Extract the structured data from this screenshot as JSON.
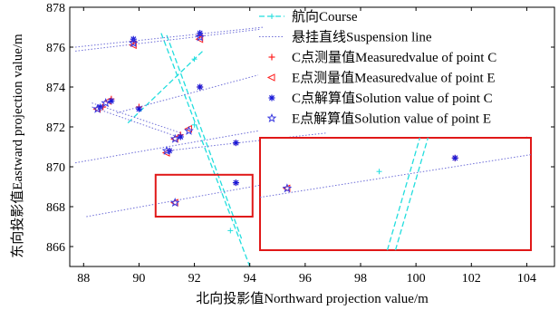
{
  "chart_data": {
    "type": "scatter",
    "xlabel": "北向投影值Northward projection value/m",
    "ylabel": "东向投影值Eastward projection value/m",
    "xlim": [
      87.5,
      105
    ],
    "ylim": [
      865,
      878
    ],
    "xticks": [
      "88",
      "90",
      "92",
      "94",
      "96",
      "98",
      "100",
      "102",
      "104"
    ],
    "yticks": [
      "866",
      "868",
      "870",
      "872",
      "874",
      "876",
      "878"
    ],
    "grid": false,
    "legend_position": "top-right",
    "legend": [
      {
        "key": "course",
        "label": "航向Course"
      },
      {
        "key": "suspension",
        "label": "悬挂直线Suspension line"
      },
      {
        "key": "measured_c",
        "label": "C点测量值Measuredvalue of point C"
      },
      {
        "key": "measured_e",
        "label": "E点测量值Measuredvalue of point E"
      },
      {
        "key": "solution_c",
        "label": "C点解算值Solution value of point C"
      },
      {
        "key": "solution_e",
        "label": "E点解算值Solution value of point E"
      }
    ],
    "colors": {
      "course": "#22dede",
      "suspension": "#6f6fd8",
      "measured_c": "#ff2020",
      "measured_e": "#ff2020",
      "solution_c": "#1a1ad8",
      "solution_e": "#3a3ae0",
      "inset_border": "#e01818"
    },
    "course_lines": [
      [
        [
          90.8,
          876.7
        ],
        [
          94.0,
          865.0
        ]
      ],
      [
        [
          91.0,
          876.6
        ],
        [
          93.7,
          866.4
        ]
      ],
      [
        [
          89.6,
          872.2
        ],
        [
          92.3,
          875.8
        ]
      ]
    ],
    "suspension_lines": [
      [
        [
          87.7,
          876.0
        ],
        [
          94.5,
          877.0
        ]
      ],
      [
        [
          87.7,
          875.8
        ],
        [
          94.4,
          876.9
        ]
      ],
      [
        [
          88.3,
          873.2
        ],
        [
          91.5,
          871.7
        ]
      ],
      [
        [
          88.3,
          873.0
        ],
        [
          91.4,
          871.5
        ]
      ],
      [
        [
          89.2,
          872.7
        ],
        [
          94.3,
          874.6
        ]
      ],
      [
        [
          87.7,
          870.2
        ],
        [
          94.3,
          871.8
        ]
      ],
      [
        [
          88.1,
          867.5
        ],
        [
          104.0,
          871.5
        ]
      ],
      [
        [
          91.0,
          870.8
        ],
        [
          96.8,
          871.7
        ]
      ]
    ],
    "points": {
      "measured_c": [
        [
          89.8,
          876.3
        ],
        [
          92.2,
          876.6
        ],
        [
          88.7,
          873.0
        ],
        [
          89.0,
          873.4
        ],
        [
          91.5,
          871.6
        ],
        [
          90.0,
          873.0
        ],
        [
          91.1,
          870.8
        ],
        [
          93.5,
          869.2
        ],
        [
          92.2,
          874.0
        ],
        [
          93.5,
          871.2
        ]
      ],
      "measured_e": [
        [
          89.8,
          876.1
        ],
        [
          92.2,
          876.4
        ],
        [
          88.5,
          872.9
        ],
        [
          88.9,
          873.3
        ],
        [
          91.3,
          871.4
        ],
        [
          91.8,
          871.9
        ],
        [
          91.0,
          870.7
        ],
        [
          91.3,
          868.2
        ]
      ],
      "solution_c": [
        [
          89.8,
          876.4
        ],
        [
          92.2,
          876.7
        ],
        [
          88.6,
          873.0
        ],
        [
          89.0,
          873.3
        ],
        [
          91.5,
          871.5
        ],
        [
          90.0,
          872.9
        ],
        [
          91.1,
          870.8
        ],
        [
          93.5,
          869.2
        ],
        [
          92.2,
          874.0
        ],
        [
          93.5,
          871.2
        ]
      ],
      "solution_e": [
        [
          89.8,
          876.2
        ],
        [
          92.2,
          876.5
        ],
        [
          88.5,
          872.9
        ],
        [
          88.8,
          873.2
        ],
        [
          91.3,
          871.4
        ],
        [
          91.8,
          871.8
        ],
        [
          91.0,
          870.8
        ],
        [
          91.3,
          868.2
        ]
      ]
    },
    "zoom_source": {
      "x": [
        90.6,
        94.1
      ],
      "y": [
        867.5,
        869.6
      ]
    },
    "inset": {
      "description_in_data_units": "magnified view of the boxed region",
      "suspension": [
        [
          0.0,
          0.47
        ],
        [
          1.0,
          0.85
        ]
      ],
      "course": [
        [
          [
            0.5,
            0.0
          ],
          [
            0.62,
            1.0
          ]
        ],
        [
          [
            0.47,
            0.0
          ],
          [
            0.59,
            1.0
          ]
        ]
      ],
      "measured_e": [
        [
          0.1,
          0.55
        ]
      ],
      "solution_e": [
        [
          0.1,
          0.55
        ]
      ],
      "measured_c": [
        [
          0.72,
          0.82
        ]
      ],
      "solution_c": [
        [
          0.72,
          0.82
        ]
      ],
      "mid_marker": [
        [
          0.44,
          0.7
        ]
      ]
    }
  }
}
